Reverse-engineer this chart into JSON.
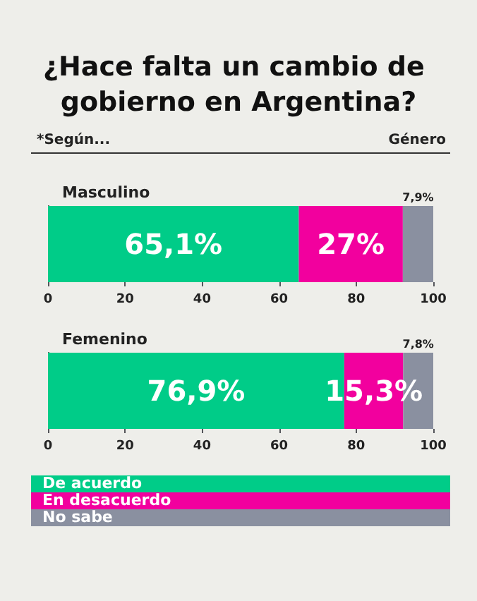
{
  "chart_data": [
    {
      "type": "bar",
      "orientation": "horizontal",
      "stacked": true,
      "title": "¿Hace falta un cambio de gobierno en Argentina?",
      "annotations": [
        "*Según...",
        "Género"
      ],
      "categories": [
        "Masculino"
      ],
      "series": [
        {
          "color": "#00cc88",
          "values": [
            65.1
          ],
          "value_labels": [
            "65,1%"
          ]
        },
        {
          "color": "#f2009e",
          "values": [
            27
          ],
          "value_labels": [
            "27%"
          ]
        },
        {
          "color": "#8a90a0",
          "values": [
            7.9
          ],
          "value_labels": [
            "7,9%"
          ]
        }
      ],
      "xlim": [
        0,
        100
      ],
      "xticks": [
        0,
        20,
        40,
        60,
        80,
        100
      ],
      "grid": false
    },
    {
      "type": "bar",
      "orientation": "horizontal",
      "stacked": true,
      "categories": [
        "Femenino"
      ],
      "series": [
        {
          "name": "De acuerdo",
          "color": "#00cc88",
          "values": [
            76.9
          ],
          "value_labels": [
            "76,9%"
          ]
        },
        {
          "name": "En desacuerdo",
          "color": "#f2009e",
          "values": [
            15.3
          ],
          "value_labels": [
            "15,3%"
          ]
        },
        {
          "name": "No sabe",
          "color": "#8a90a0",
          "values": [
            7.8
          ],
          "value_labels": [
            "7,8%"
          ]
        }
      ],
      "xlim": [
        0,
        100
      ],
      "xticks": [
        0,
        20,
        40,
        60,
        80,
        100
      ],
      "grid": false,
      "legend": "bottom"
    }
  ]
}
